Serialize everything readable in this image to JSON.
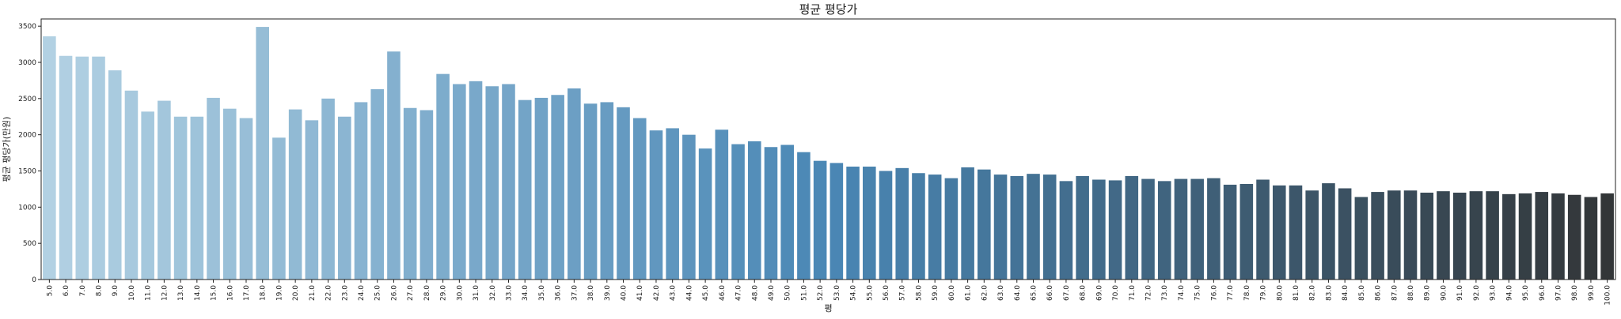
{
  "chart_data": {
    "type": "bar",
    "title": "평균 평당가",
    "xlabel": "평",
    "ylabel": "평균 평당가(만원)",
    "ylim": [
      0,
      3600
    ],
    "yticks": [
      0,
      500,
      1000,
      1500,
      2000,
      2500,
      3000,
      3500
    ],
    "grid": false,
    "palette": "light-blue-to-dark-slate gradient",
    "color_start": "#b2d1e3",
    "color_mid": "#4a87b5",
    "color_end": "#333638",
    "categories": [
      "5.0",
      "6.0",
      "7.0",
      "8.0",
      "9.0",
      "10.0",
      "11.0",
      "12.0",
      "13.0",
      "14.0",
      "15.0",
      "16.0",
      "17.0",
      "18.0",
      "19.0",
      "20.0",
      "21.0",
      "22.0",
      "23.0",
      "24.0",
      "25.0",
      "26.0",
      "27.0",
      "28.0",
      "29.0",
      "30.0",
      "31.0",
      "32.0",
      "33.0",
      "34.0",
      "35.0",
      "36.0",
      "37.0",
      "38.0",
      "39.0",
      "40.0",
      "41.0",
      "42.0",
      "43.0",
      "44.0",
      "45.0",
      "46.0",
      "47.0",
      "48.0",
      "49.0",
      "50.0",
      "51.0",
      "52.0",
      "53.0",
      "54.0",
      "55.0",
      "56.0",
      "57.0",
      "58.0",
      "59.0",
      "60.0",
      "61.0",
      "62.0",
      "63.0",
      "64.0",
      "65.0",
      "66.0",
      "67.0",
      "68.0",
      "69.0",
      "70.0",
      "71.0",
      "72.0",
      "73.0",
      "74.0",
      "75.0",
      "76.0",
      "77.0",
      "78.0",
      "79.0",
      "80.0",
      "81.0",
      "82.0",
      "83.0",
      "84.0",
      "85.0",
      "86.0",
      "87.0",
      "88.0",
      "89.0",
      "90.0",
      "91.0",
      "92.0",
      "93.0",
      "94.0",
      "95.0",
      "96.0",
      "97.0",
      "98.0",
      "99.0",
      "100.0"
    ],
    "values": [
      3360,
      3090,
      3080,
      3080,
      2890,
      2610,
      2320,
      2470,
      2250,
      2250,
      2510,
      2360,
      2230,
      3490,
      1960,
      2350,
      2200,
      2500,
      2250,
      2450,
      2630,
      3150,
      2370,
      2340,
      2840,
      2700,
      2740,
      2670,
      2700,
      2480,
      2510,
      2550,
      2640,
      2430,
      2450,
      2380,
      2230,
      2060,
      2090,
      2000,
      1810,
      2070,
      1870,
      1910,
      1830,
      1860,
      1760,
      1640,
      1610,
      1560,
      1560,
      1500,
      1540,
      1470,
      1450,
      1400,
      1550,
      1520,
      1450,
      1430,
      1460,
      1450,
      1360,
      1430,
      1380,
      1370,
      1430,
      1390,
      1360,
      1390,
      1390,
      1400,
      1310,
      1320,
      1380,
      1300,
      1300,
      1230,
      1330,
      1260,
      1140,
      1210,
      1230,
      1230,
      1200,
      1220,
      1200,
      1220,
      1220,
      1180,
      1190,
      1210,
      1190,
      1170,
      1140,
      1190
    ]
  }
}
